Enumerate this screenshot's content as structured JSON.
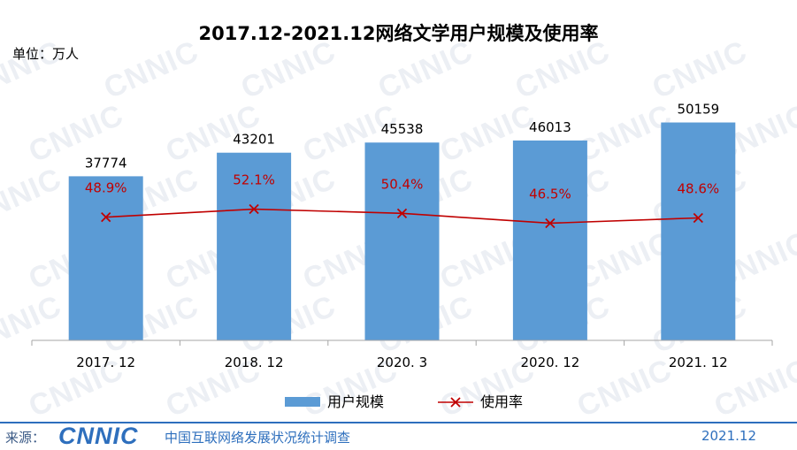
{
  "title": "2017.12-2021.12网络文学用户规模及使用率",
  "unit_label": "单位：万人",
  "watermark": "CNNIC",
  "colors": {
    "bar": "#5b9bd5",
    "line": "#c00000",
    "footer": "#2e6fbd"
  },
  "chart_data": {
    "type": "bar",
    "categories": [
      "2017. 12",
      "2018. 12",
      "2020. 3",
      "2020. 12",
      "2021. 12"
    ],
    "series": [
      {
        "name": "用户规模",
        "type": "bar",
        "values": [
          37774,
          43201,
          45538,
          46013,
          50159
        ],
        "labels": [
          "37774",
          "43201",
          "45538",
          "46013",
          "50159"
        ]
      },
      {
        "name": "使用率",
        "type": "line",
        "marker": "x",
        "values": [
          48.9,
          52.1,
          50.4,
          46.5,
          48.6
        ],
        "labels": [
          "48.9%",
          "52.1%",
          "50.4%",
          "46.5%",
          "48.6%"
        ]
      }
    ],
    "y_max": 58000,
    "y2_range": [
      0,
      100
    ],
    "legend_position": "bottom"
  },
  "footer": {
    "source_label": "来源：",
    "logo_text": "CNNIC",
    "org_name": "中国互联网络发展状况统计调查",
    "date": "2021.12"
  }
}
